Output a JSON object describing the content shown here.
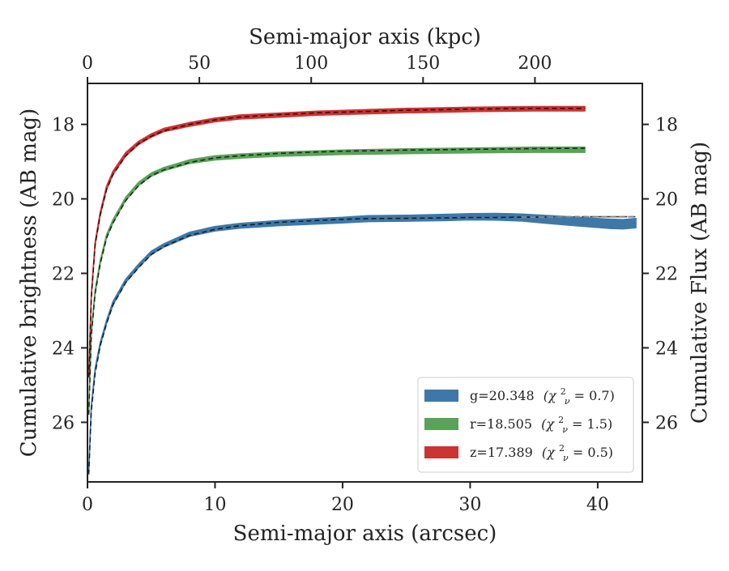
{
  "chart_data": {
    "type": "line",
    "xlabel": "Semi-major axis (arcsec)",
    "ylabel": "Cumulative brightness (AB mag)",
    "top_xlabel": "Semi-major axis (kpc)",
    "right_ylabel": "Cumulative Flux (AB mag)",
    "xlim": [
      0,
      43.5
    ],
    "ylim": [
      27.6,
      16.9
    ],
    "y_inverted": true,
    "top_xlim": [
      0,
      248
    ],
    "x_ticks": [
      0,
      10,
      20,
      30,
      40
    ],
    "x_tick_labels": [
      "0",
      "10",
      "20",
      "30",
      "40"
    ],
    "top_x_ticks": [
      0,
      50,
      100,
      150,
      200
    ],
    "top_x_tick_labels": [
      "0",
      "50",
      "100",
      "150",
      "200"
    ],
    "y_ticks": [
      18,
      20,
      22,
      24,
      26
    ],
    "y_tick_labels": [
      "18",
      "20",
      "22",
      "24",
      "26"
    ],
    "grid": false,
    "legend_position": "lower-right",
    "series": [
      {
        "name": "g=20.348",
        "chi_label": "(χ",
        "chi_sup": "2",
        "chi_sub": "ν",
        "chi_value": " = 0.7)",
        "color": "#3e78a8",
        "x": [
          0.1,
          0.3,
          0.6,
          1,
          1.5,
          2,
          3,
          4,
          5,
          6,
          8,
          10,
          12,
          15,
          18,
          20,
          22,
          25,
          28,
          30,
          32,
          34,
          36,
          38,
          40,
          41,
          42,
          43
        ],
        "values": [
          27.3,
          25.6,
          24.6,
          23.9,
          23.3,
          22.8,
          22.2,
          21.8,
          21.45,
          21.25,
          20.95,
          20.8,
          20.72,
          20.65,
          20.6,
          20.57,
          20.53,
          20.52,
          20.5,
          20.48,
          20.48,
          20.5,
          20.55,
          20.6,
          20.65,
          20.67,
          20.68,
          20.65
        ],
        "band_width": [
          0,
          0,
          0,
          0,
          0,
          0,
          0,
          0,
          0,
          0,
          0.02,
          0.03,
          0.04,
          0.05,
          0.06,
          0.06,
          0.07,
          0.07,
          0.08,
          0.08,
          0.09,
          0.1,
          0.12,
          0.14,
          0.15,
          0.16,
          0.16,
          0.16
        ]
      },
      {
        "name": "r=18.505",
        "chi_label": "(χ",
        "chi_sup": "2",
        "chi_sub": "ν",
        "chi_value": " = 1.5)",
        "color": "#5aa25a",
        "x": [
          0.1,
          0.3,
          0.6,
          1,
          1.5,
          2,
          3,
          4,
          5,
          6,
          8,
          10,
          12,
          15,
          18,
          20,
          25,
          30,
          35,
          39
        ],
        "values": [
          25.7,
          23.6,
          22.5,
          21.7,
          21.0,
          20.6,
          20.0,
          19.6,
          19.35,
          19.2,
          19.0,
          18.9,
          18.85,
          18.8,
          18.77,
          18.75,
          18.72,
          18.7,
          18.68,
          18.68
        ],
        "band_width": [
          0,
          0,
          0,
          0,
          0,
          0,
          0,
          0,
          0,
          0,
          0.01,
          0.02,
          0.02,
          0.02,
          0.03,
          0.03,
          0.04,
          0.04,
          0.05,
          0.05
        ]
      },
      {
        "name": "z=17.389",
        "chi_label": "(χ",
        "chi_sup": "2",
        "chi_sub": "ν",
        "chi_value": " = 0.5)",
        "color": "#cc3333",
        "x": [
          0.1,
          0.3,
          0.6,
          1,
          1.5,
          2,
          3,
          4,
          5,
          6,
          8,
          10,
          12,
          15,
          18,
          20,
          25,
          30,
          35,
          39
        ],
        "values": [
          24.7,
          22.6,
          21.2,
          20.4,
          19.7,
          19.3,
          18.8,
          18.5,
          18.3,
          18.15,
          18.0,
          17.88,
          17.8,
          17.75,
          17.7,
          17.68,
          17.63,
          17.6,
          17.58,
          17.58
        ],
        "band_width": [
          0,
          0,
          0,
          0,
          0,
          0,
          0,
          0,
          0,
          0,
          0.01,
          0.01,
          0.02,
          0.02,
          0.02,
          0.02,
          0.03,
          0.03,
          0.03,
          0.03
        ]
      }
    ],
    "models": [
      {
        "x": [
          0.1,
          0.3,
          0.6,
          1,
          1.5,
          2,
          3,
          4,
          5,
          6,
          8,
          10,
          12,
          15,
          18,
          20,
          22,
          25,
          28,
          30,
          32,
          34,
          36,
          38,
          40,
          42,
          43
        ],
        "values": [
          27.4,
          25.7,
          24.7,
          23.95,
          23.35,
          22.85,
          22.25,
          21.85,
          21.5,
          21.28,
          20.98,
          20.82,
          20.72,
          20.63,
          20.58,
          20.55,
          20.53,
          20.52,
          20.51,
          20.5,
          20.5,
          20.49,
          20.49,
          20.48,
          20.48,
          20.48,
          20.48
        ]
      },
      {
        "x": [
          0.1,
          0.3,
          0.6,
          1,
          1.5,
          2,
          3,
          4,
          5,
          6,
          8,
          10,
          12,
          15,
          18,
          20,
          25,
          30,
          35,
          39
        ],
        "values": [
          25.8,
          23.7,
          22.55,
          21.75,
          21.05,
          20.65,
          20.05,
          19.65,
          19.38,
          19.22,
          19.02,
          18.9,
          18.84,
          18.78,
          18.74,
          18.72,
          18.69,
          18.67,
          18.65,
          18.64
        ]
      },
      {
        "x": [
          0.1,
          0.3,
          0.6,
          1,
          1.5,
          2,
          3,
          4,
          5,
          6,
          8,
          10,
          12,
          15,
          18,
          20,
          25,
          30,
          35,
          39
        ],
        "values": [
          24.8,
          22.7,
          21.25,
          20.45,
          19.75,
          19.35,
          18.85,
          18.52,
          18.32,
          18.17,
          18.0,
          17.88,
          17.8,
          17.74,
          17.69,
          17.67,
          17.62,
          17.59,
          17.57,
          17.57
        ]
      }
    ]
  }
}
